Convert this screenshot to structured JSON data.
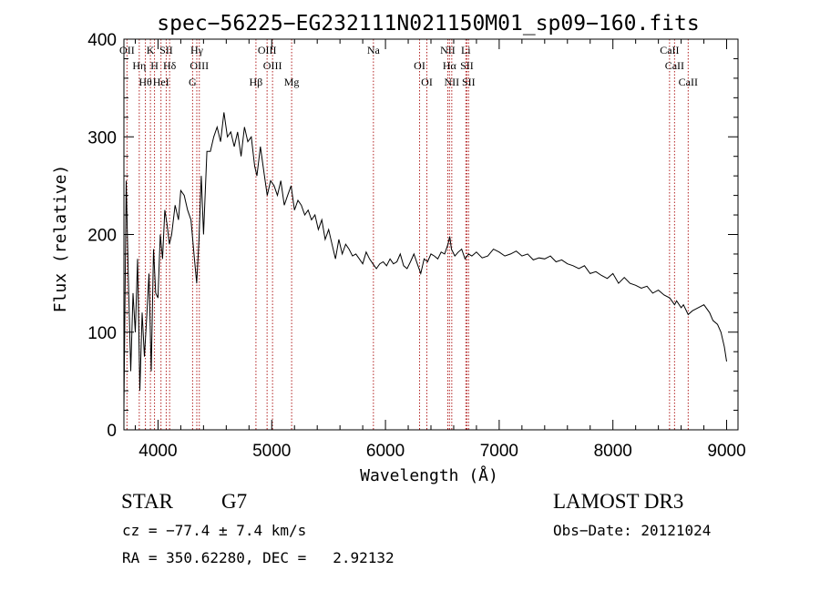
{
  "chart_data": {
    "type": "line",
    "title": "spec−56225−EG232111N021150M01_sp09−160.fits",
    "xlabel": "Wavelength (Å)",
    "ylabel": "Flux (relative)",
    "xlim": [
      3700,
      9100
    ],
    "ylim": [
      0,
      400
    ],
    "xticks": [
      4000,
      5000,
      6000,
      7000,
      8000,
      9000
    ],
    "yticks": [
      0,
      100,
      200,
      300,
      400
    ],
    "series": [
      {
        "color": "#000000",
        "x": [
          3700,
          3720,
          3740,
          3760,
          3780,
          3800,
          3820,
          3840,
          3860,
          3880,
          3900,
          3920,
          3940,
          3960,
          3980,
          4000,
          4020,
          4040,
          4060,
          4080,
          4100,
          4120,
          4150,
          4180,
          4200,
          4230,
          4260,
          4290,
          4320,
          4340,
          4360,
          4380,
          4400,
          4430,
          4460,
          4490,
          4520,
          4550,
          4580,
          4610,
          4640,
          4670,
          4700,
          4730,
          4760,
          4790,
          4820,
          4850,
          4870,
          4900,
          4930,
          4960,
          4990,
          5020,
          5050,
          5080,
          5110,
          5140,
          5170,
          5200,
          5230,
          5260,
          5290,
          5320,
          5350,
          5380,
          5410,
          5440,
          5470,
          5500,
          5530,
          5560,
          5590,
          5620,
          5650,
          5680,
          5710,
          5740,
          5770,
          5800,
          5830,
          5860,
          5890,
          5920,
          5950,
          5980,
          6010,
          6040,
          6070,
          6100,
          6130,
          6160,
          6190,
          6220,
          6250,
          6280,
          6310,
          6340,
          6370,
          6400,
          6430,
          6460,
          6490,
          6520,
          6550,
          6565,
          6580,
          6610,
          6640,
          6670,
          6700,
          6730,
          6760,
          6800,
          6850,
          6900,
          6950,
          7000,
          7050,
          7100,
          7150,
          7200,
          7250,
          7300,
          7350,
          7400,
          7450,
          7500,
          7550,
          7600,
          7650,
          7700,
          7750,
          7800,
          7850,
          7900,
          7950,
          8000,
          8050,
          8100,
          8150,
          8200,
          8250,
          8300,
          8350,
          8400,
          8450,
          8500,
          8542,
          8560,
          8600,
          8620,
          8662,
          8700,
          8750,
          8800,
          8850,
          8880,
          8920,
          8950,
          8980,
          9000
        ],
        "y": [
          20,
          255,
          150,
          60,
          140,
          100,
          175,
          40,
          120,
          75,
          115,
          160,
          60,
          185,
          140,
          135,
          200,
          175,
          225,
          210,
          190,
          200,
          230,
          215,
          245,
          240,
          225,
          215,
          175,
          150,
          195,
          260,
          200,
          285,
          285,
          300,
          310,
          295,
          325,
          300,
          305,
          290,
          305,
          280,
          310,
          295,
          300,
          270,
          260,
          290,
          265,
          240,
          255,
          250,
          240,
          255,
          230,
          240,
          250,
          225,
          235,
          230,
          220,
          225,
          215,
          220,
          205,
          215,
          195,
          205,
          190,
          175,
          195,
          180,
          190,
          185,
          178,
          180,
          175,
          170,
          182,
          175,
          170,
          165,
          170,
          172,
          168,
          175,
          170,
          172,
          180,
          168,
          165,
          172,
          180,
          170,
          160,
          175,
          172,
          180,
          178,
          175,
          182,
          180,
          190,
          198,
          185,
          178,
          182,
          185,
          175,
          180,
          178,
          182,
          176,
          178,
          185,
          182,
          178,
          180,
          183,
          178,
          180,
          174,
          176,
          175,
          178,
          172,
          174,
          170,
          168,
          165,
          168,
          160,
          162,
          158,
          155,
          160,
          150,
          156,
          150,
          148,
          145,
          147,
          140,
          143,
          138,
          135,
          128,
          132,
          125,
          128,
          118,
          122,
          125,
          128,
          120,
          112,
          108,
          100,
          85,
          70
        ]
      }
    ],
    "line_markers": [
      {
        "wl": 3727,
        "label": "OII"
      },
      {
        "wl": 3835,
        "label": "Hη"
      },
      {
        "wl": 3889,
        "label": "Hθ"
      },
      {
        "wl": 3933,
        "label": "K"
      },
      {
        "wl": 3969,
        "label": "H"
      },
      {
        "wl": 4026,
        "label": "HeI"
      },
      {
        "wl": 4072,
        "label": "SII"
      },
      {
        "wl": 4102,
        "label": "Hδ"
      },
      {
        "wl": 4304,
        "label": "G"
      },
      {
        "wl": 4341,
        "label": "Hγ"
      },
      {
        "wl": 4363,
        "label": "OIII"
      },
      {
        "wl": 4861,
        "label": "Hβ"
      },
      {
        "wl": 4959,
        "label": "OIII"
      },
      {
        "wl": 5007,
        "label": "OIII"
      },
      {
        "wl": 5175,
        "label": "Mg"
      },
      {
        "wl": 5894,
        "label": "Na"
      },
      {
        "wl": 6300,
        "label": "OI"
      },
      {
        "wl": 6364,
        "label": "OI"
      },
      {
        "wl": 6548,
        "label": "NII"
      },
      {
        "wl": 6563,
        "label": "Hα"
      },
      {
        "wl": 6583,
        "label": "NII"
      },
      {
        "wl": 6707,
        "label": "Li"
      },
      {
        "wl": 6716,
        "label": "SII"
      },
      {
        "wl": 6731,
        "label": "SII"
      },
      {
        "wl": 8498,
        "label": "CaII"
      },
      {
        "wl": 8542,
        "label": "CaII"
      },
      {
        "wl": 8662,
        "label": "CaII"
      }
    ]
  },
  "footer": {
    "class_label": "STAR",
    "subclass": "G7",
    "survey": "LAMOST DR3",
    "cz": "cz = −77.4 ± 7.4 km/s",
    "obs_date": "Obs−Date: 20121024",
    "radec": "RA = 350.62280, DEC =   2.92132"
  }
}
